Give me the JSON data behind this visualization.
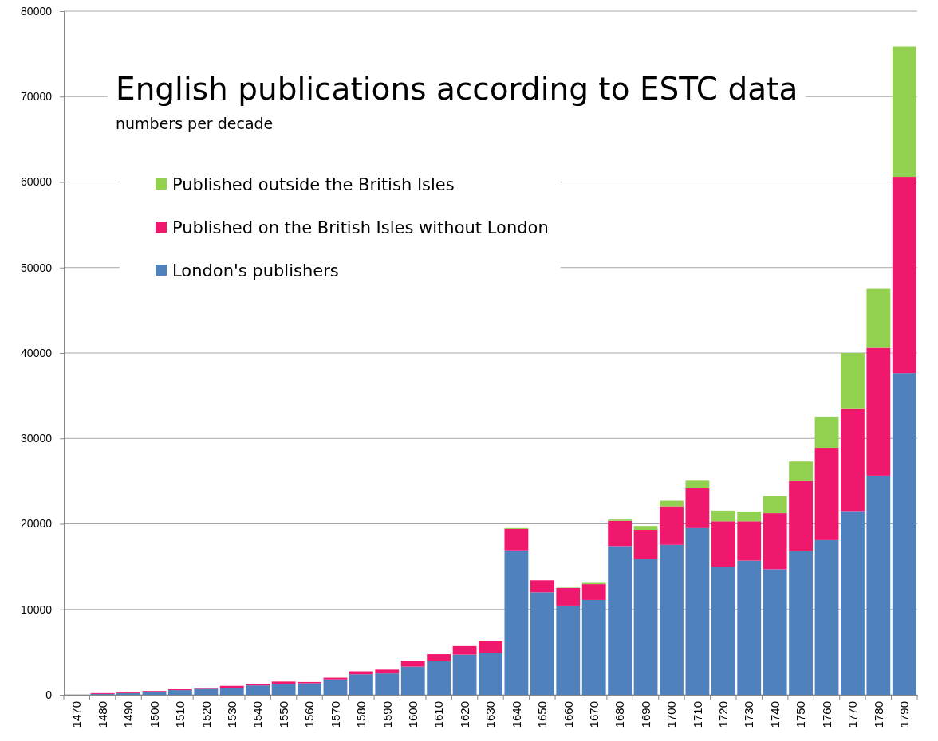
{
  "chart_data": {
    "type": "bar",
    "title": "English publications according to ESTC data",
    "subtitle": "numbers per decade",
    "categories": [
      "1470",
      "1480",
      "1490",
      "1500",
      "1510",
      "1520",
      "1530",
      "1540",
      "1550",
      "1560",
      "1570",
      "1580",
      "1590",
      "1600",
      "1610",
      "1620",
      "1630",
      "1640",
      "1650",
      "1660",
      "1670",
      "1680",
      "1690",
      "1700",
      "1710",
      "1720",
      "1730",
      "1740",
      "1750",
      "1760",
      "1770",
      "1780",
      "1790"
    ],
    "series": [
      {
        "name": "London's publishers",
        "color": "#4f81bd",
        "values": [
          0,
          100,
          200,
          350,
          550,
          700,
          800,
          1100,
          1300,
          1350,
          1800,
          2400,
          2500,
          3300,
          3950,
          4700,
          4900,
          16900,
          12000,
          10450,
          11100,
          17400,
          15900,
          17550,
          19500,
          14950,
          15700,
          14700,
          16800,
          18100,
          21500,
          25650,
          37650
        ]
      },
      {
        "name": "Published on the British Isles without London",
        "color": "#f0186c",
        "values": [
          0,
          100,
          100,
          100,
          100,
          100,
          250,
          200,
          250,
          150,
          200,
          350,
          450,
          700,
          800,
          1000,
          1350,
          2500,
          1400,
          2050,
          1850,
          2950,
          3400,
          4500,
          4650,
          5350,
          4600,
          6550,
          8200,
          10800,
          12000,
          14950,
          22950
        ]
      },
      {
        "name": "Published outside the British Isles",
        "color": "#92d050",
        "values": [
          0,
          0,
          0,
          0,
          0,
          0,
          0,
          0,
          0,
          0,
          0,
          0,
          0,
          0,
          0,
          0,
          50,
          100,
          null,
          50,
          150,
          150,
          450,
          650,
          900,
          1250,
          1150,
          2000,
          2300,
          3650,
          6500,
          6900,
          15250
        ]
      }
    ],
    "stacked": true,
    "ylim": [
      0,
      80000
    ],
    "yticks": [
      0,
      10000,
      20000,
      30000,
      40000,
      50000,
      60000,
      70000,
      80000
    ],
    "grid": "y",
    "legend": "top left"
  }
}
